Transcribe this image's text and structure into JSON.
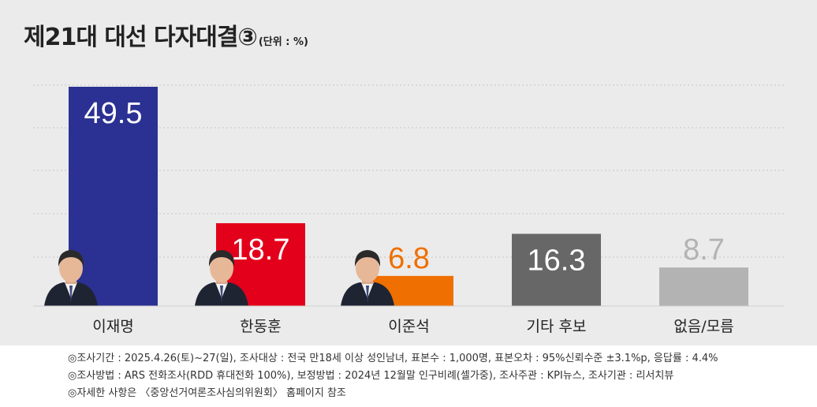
{
  "title": "제21대 대선 다자대결③",
  "unit": "(단위 : %)",
  "chart_data": {
    "type": "bar",
    "title": "제21대 대선 다자대결③",
    "categories": [
      "이재명",
      "한동훈",
      "이준석",
      "기타 후보",
      "없음/모름"
    ],
    "values": [
      49.5,
      18.7,
      6.8,
      16.3,
      8.7
    ],
    "value_labels": [
      "49.5",
      "18.7",
      "6.8",
      "16.3",
      "8.7"
    ],
    "colors": [
      "#2b3192",
      "#e3001b",
      "#ef6f00",
      "#676767",
      "#b3b3b3"
    ],
    "ylim": [
      0,
      50
    ],
    "grid": true,
    "xlabel": "",
    "ylabel": ""
  },
  "notes": [
    "◎조사기간 : 2025.4.26(토)~27(일), 조사대상 : 전국 만18세 이상 성인남녀, 표본수 : 1,000명, 표본오차 : 95%신뢰수준 ±3.1%p, 응답률 : 4.4%",
    "◎조사방법 : ARS 전화조사(RDD 휴대전화 100%), 보정방법 : 2024년 12월말 인구비례(셀가중), 조사주관 : KPI뉴스, 조사기관 : 리서치뷰",
    "◎자세한 사항은 〈중앙선거여론조사심의위원회〉 홈페이지 참조"
  ]
}
